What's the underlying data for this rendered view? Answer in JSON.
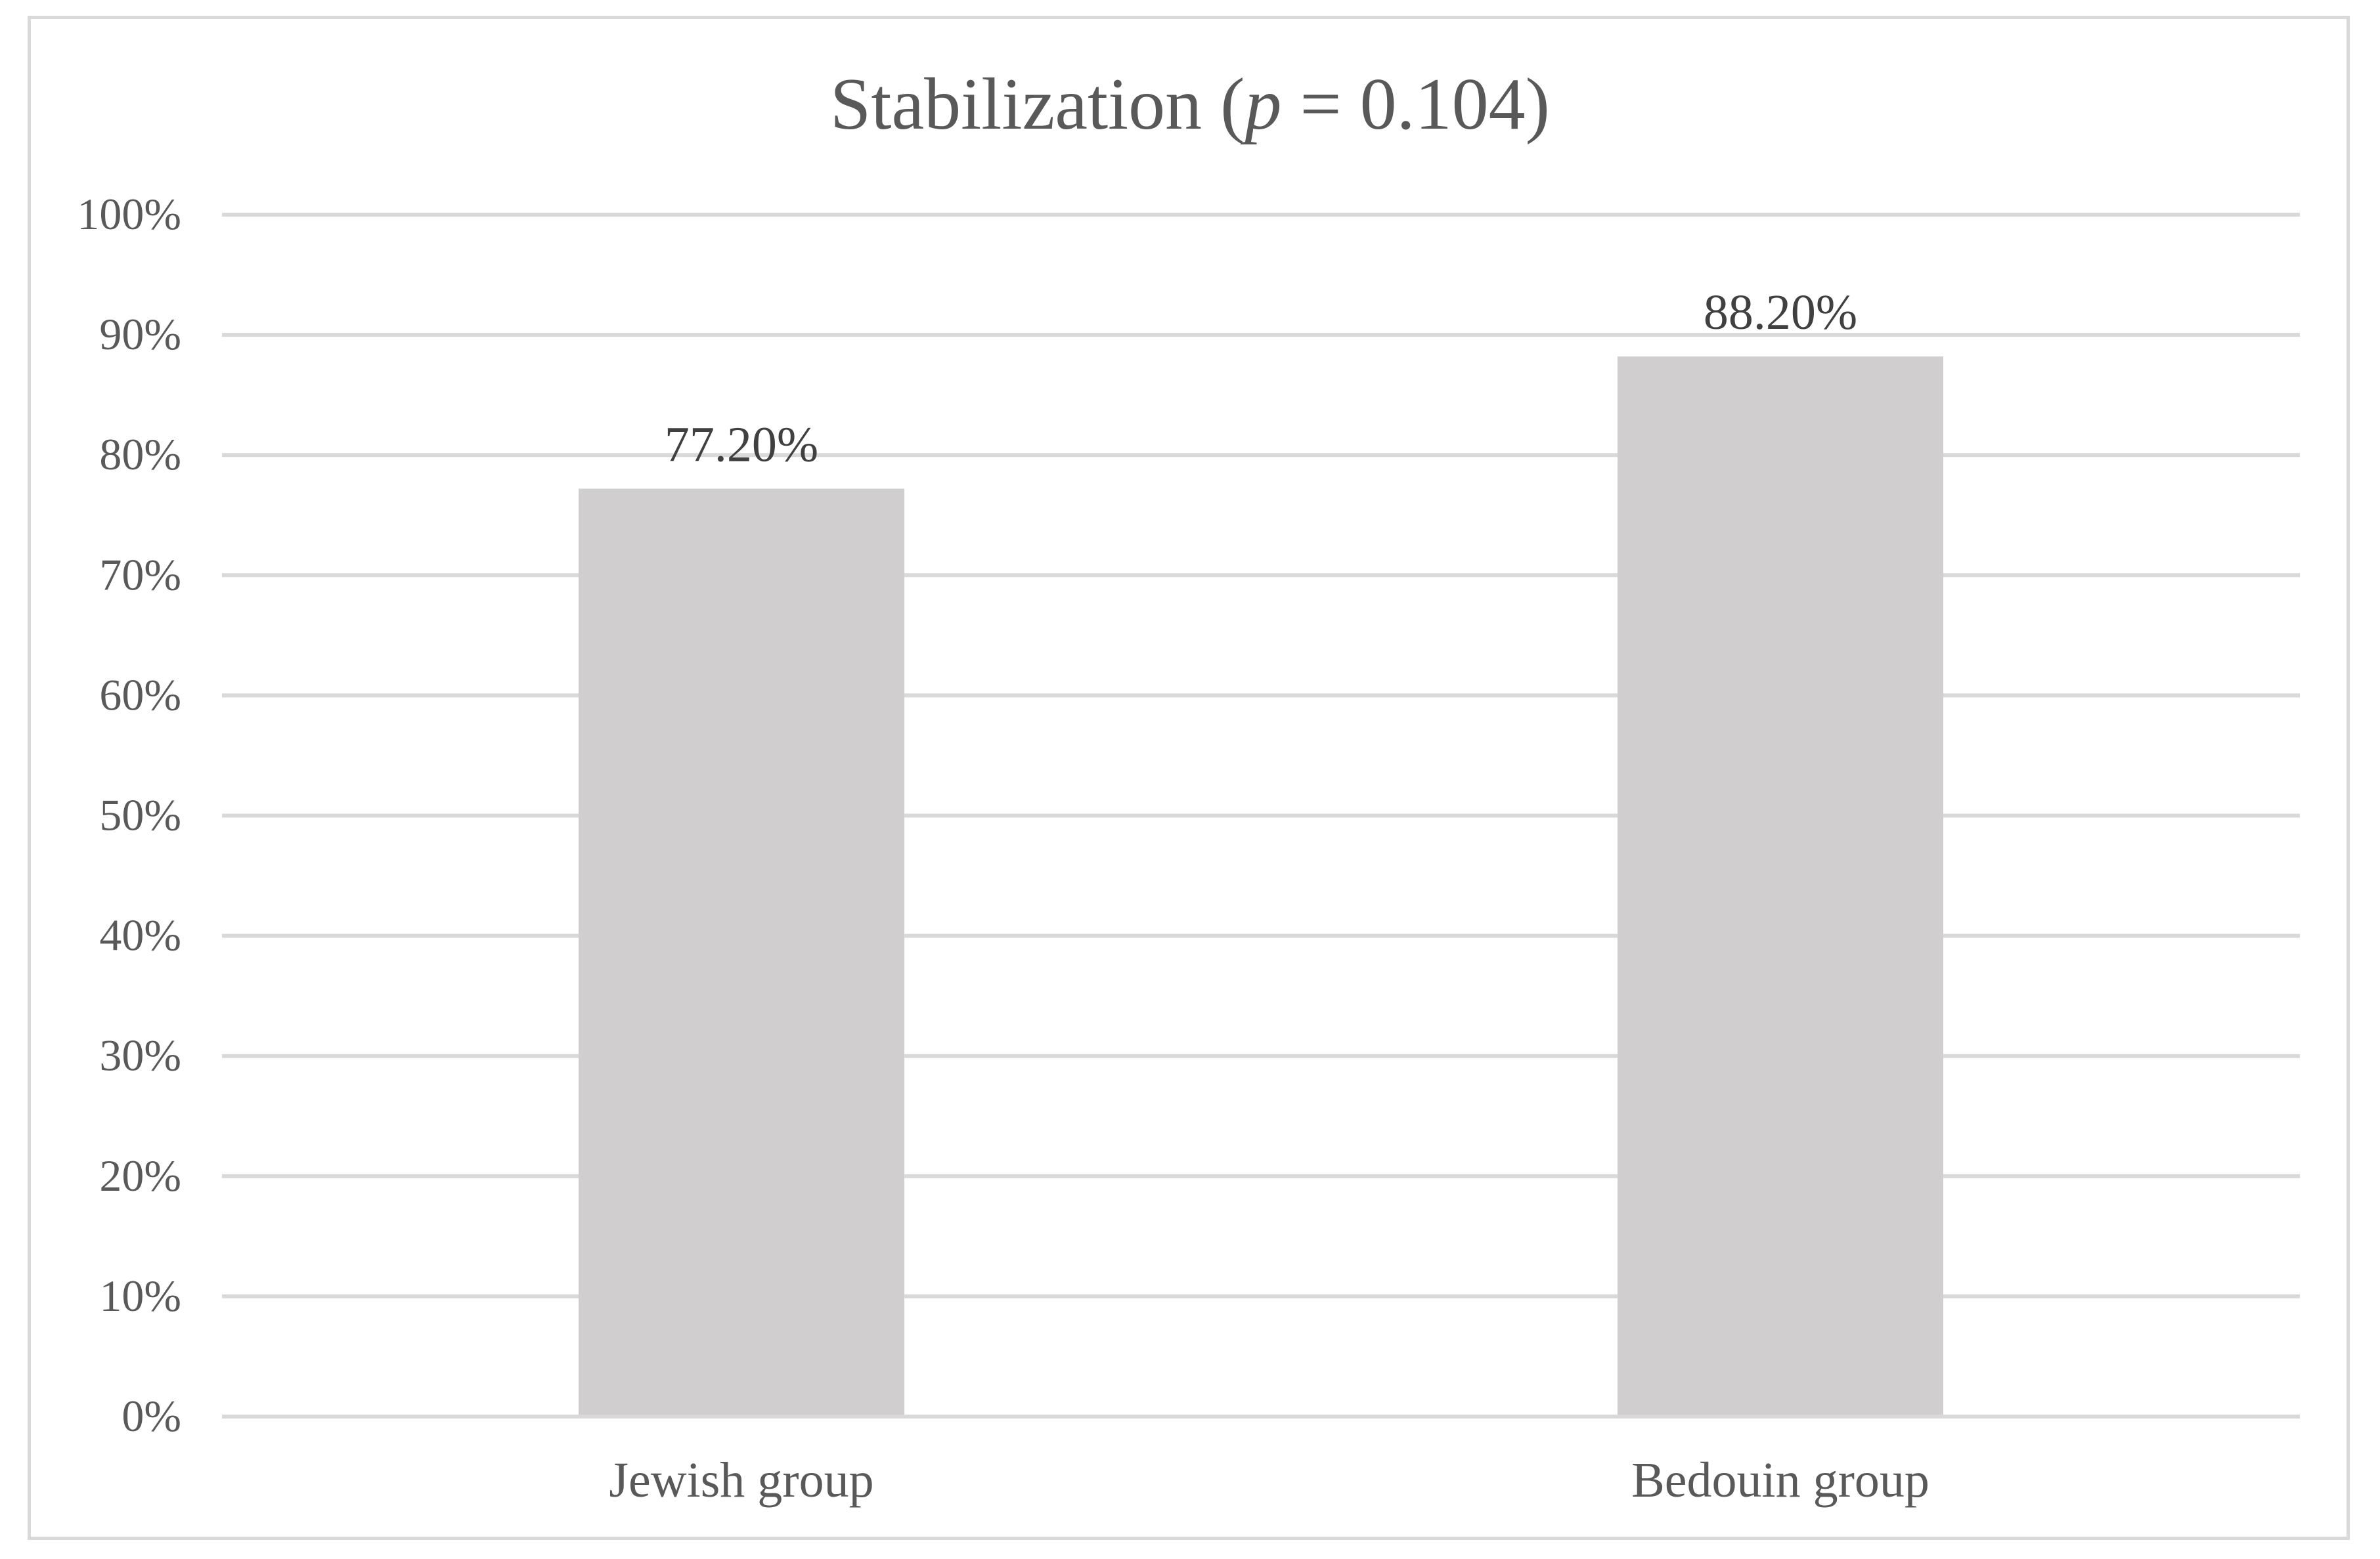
{
  "chart_data": {
    "type": "bar",
    "title": "Stabilization (p = 0.104)",
    "title_parts": {
      "prefix": "Stabilization (",
      "italic": "p",
      "suffix": " = 0.104)"
    },
    "categories": [
      "Jewish group",
      "Bedouin group"
    ],
    "values": [
      77.2,
      88.2
    ],
    "data_labels": [
      "77.20%",
      "88.20%"
    ],
    "xlabel": "",
    "ylabel": "",
    "ylim": [
      0,
      100
    ],
    "y_ticks": [
      0,
      10,
      20,
      30,
      40,
      50,
      60,
      70,
      80,
      90,
      100
    ],
    "y_tick_labels": [
      "0%",
      "10%",
      "20%",
      "30%",
      "40%",
      "50%",
      "60%",
      "70%",
      "80%",
      "90%",
      "100%"
    ],
    "grid": true,
    "legend": "none",
    "colors": {
      "bar": "#d0cece",
      "grid": "#d9d9d9",
      "text": "#595959",
      "data_label": "#404040",
      "frame": "#d9d9d9"
    }
  }
}
